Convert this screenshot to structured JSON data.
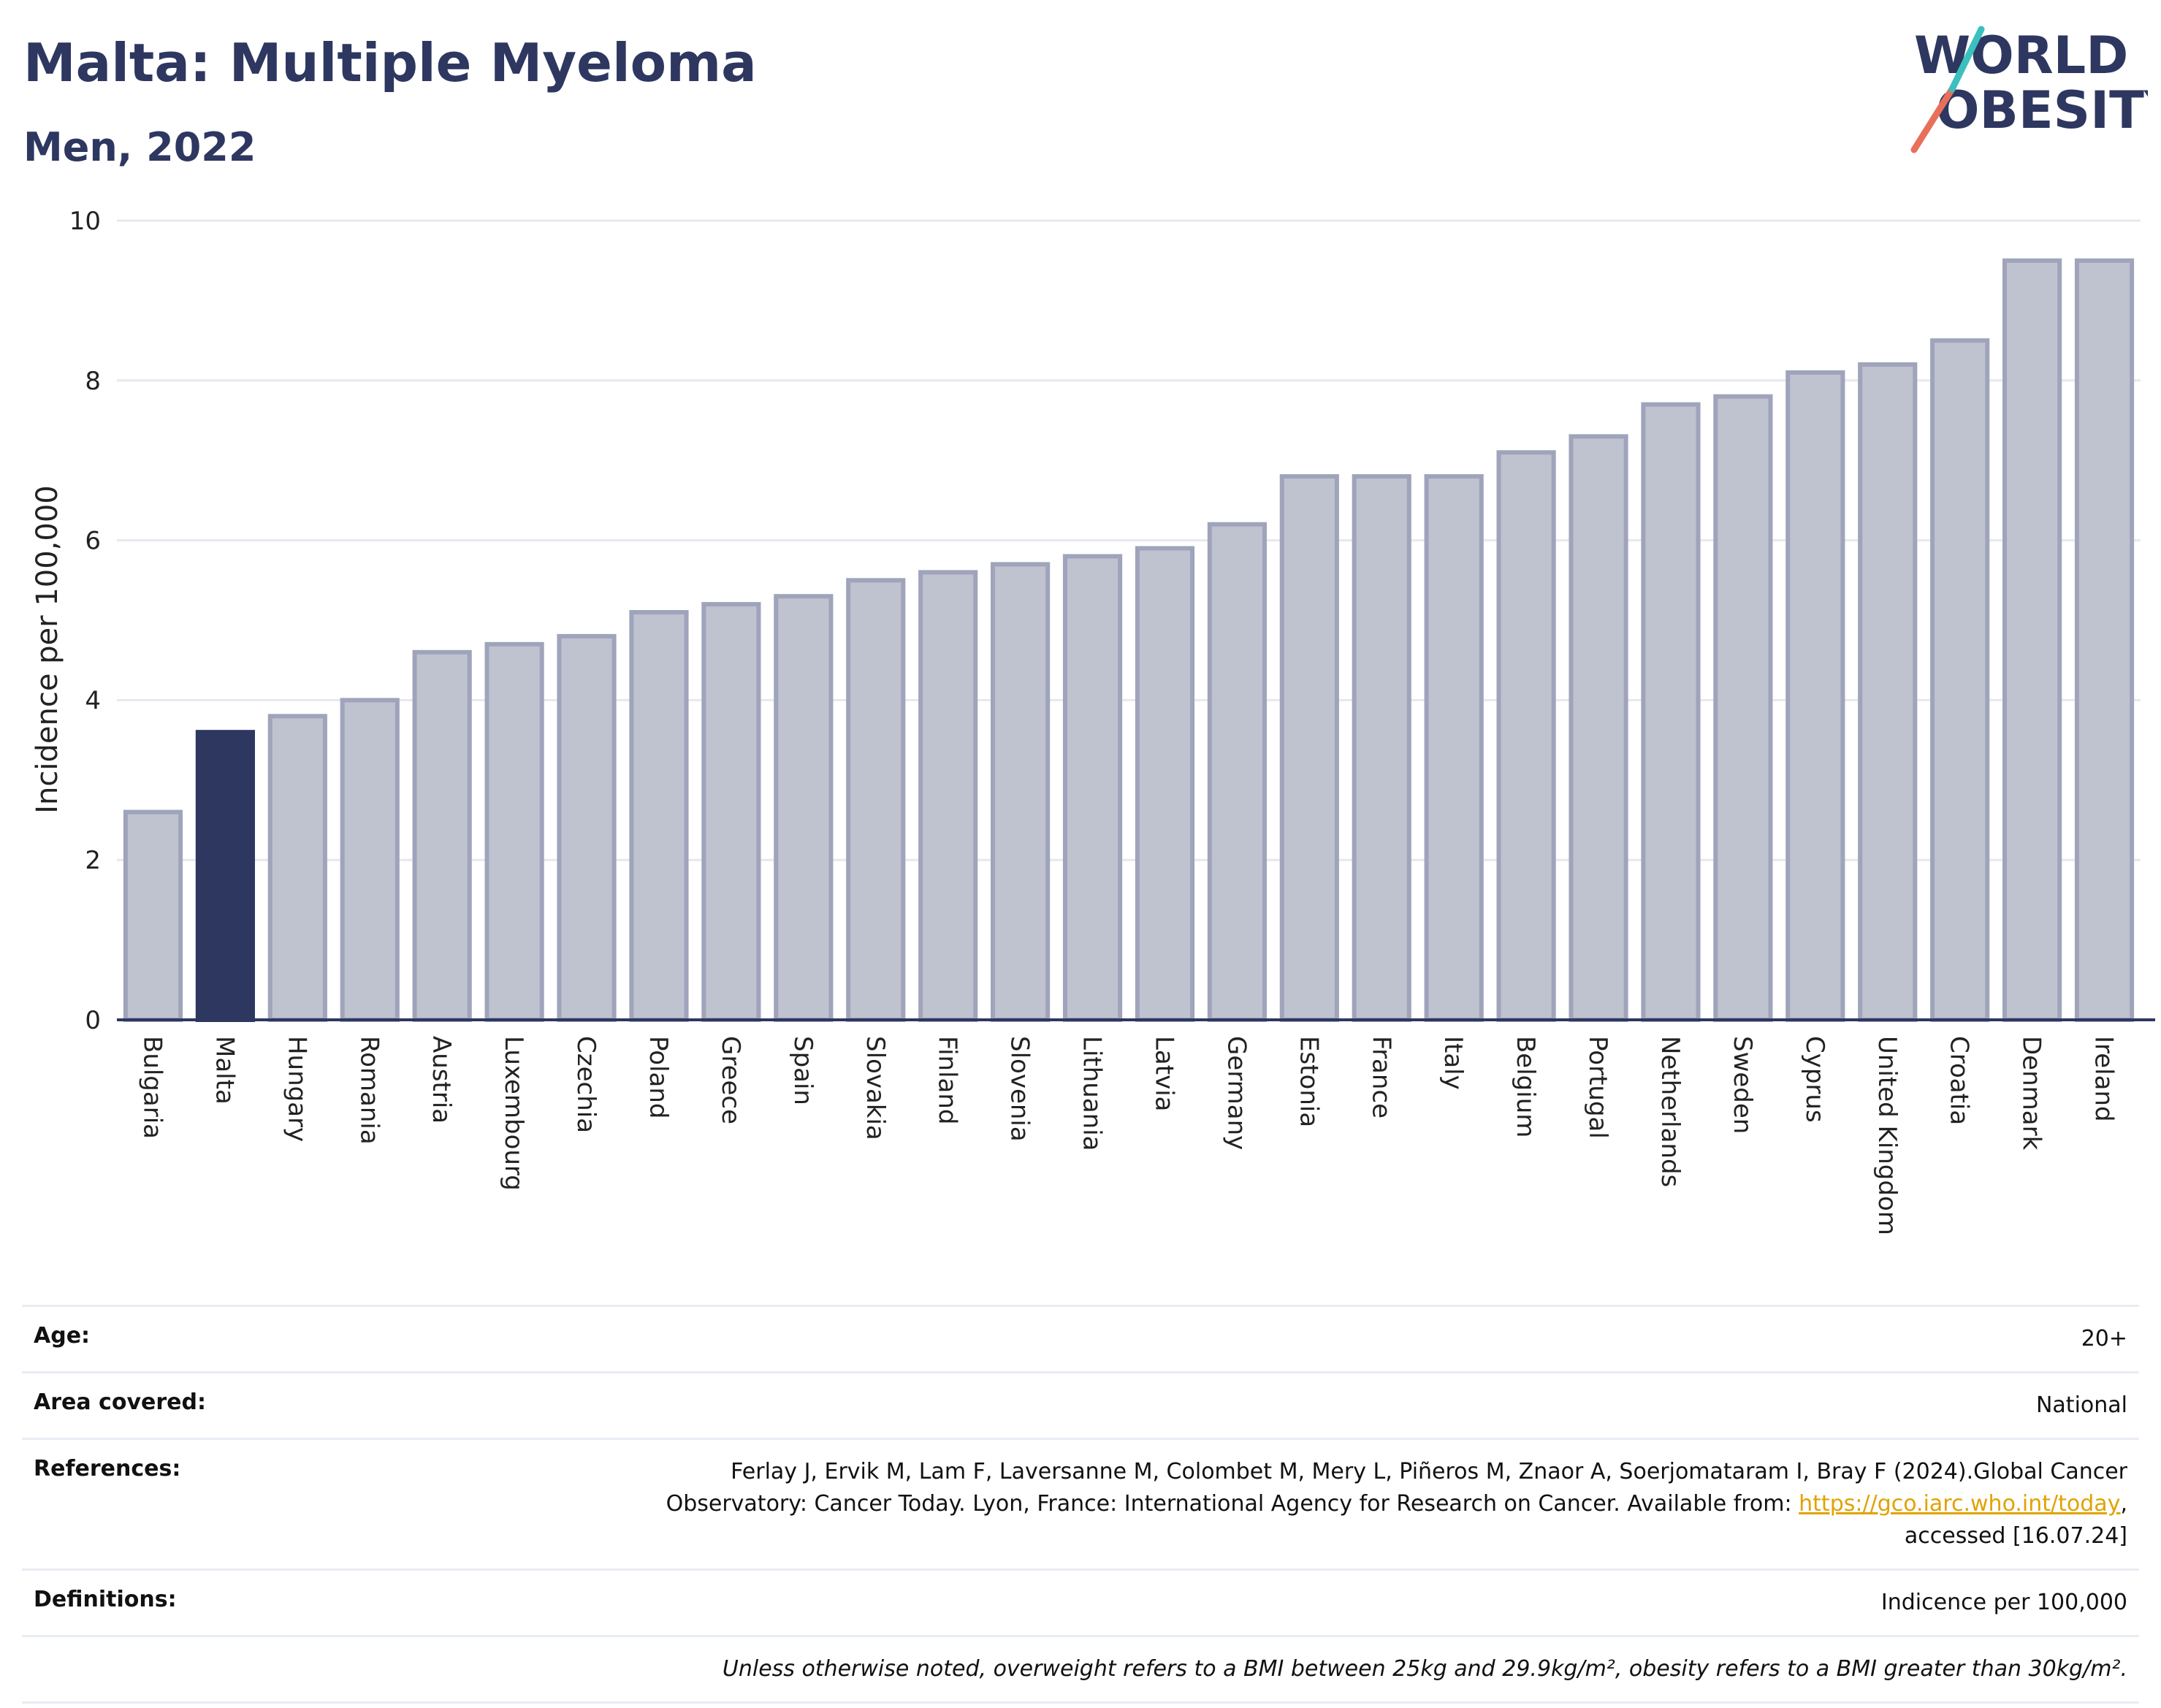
{
  "header": {
    "title": "Malta: Multiple Myeloma",
    "subtitle": "Men, 2022"
  },
  "logo": {
    "line1": "WORLD",
    "line2": "OBESITY"
  },
  "chart_data": {
    "type": "bar",
    "ylabel": "Incidence per 100,000",
    "xlabel": "",
    "ylim": [
      0,
      10
    ],
    "yticks": [
      0,
      2,
      4,
      6,
      8,
      10
    ],
    "grid": true,
    "highlight": "Malta",
    "colors": {
      "bar": "#bfc2cf",
      "bar_border": "#9fa4bb",
      "highlight": "#2d3760",
      "axis": "#2d3760",
      "grid": "#e6e8ee"
    },
    "categories": [
      "Bulgaria",
      "Malta",
      "Hungary",
      "Romania",
      "Austria",
      "Luxembourg",
      "Czechia",
      "Poland",
      "Greece",
      "Spain",
      "Slovakia",
      "Finland",
      "Slovenia",
      "Lithuania",
      "Latvia",
      "Germany",
      "Estonia",
      "France",
      "Italy",
      "Belgium",
      "Portugal",
      "Netherlands",
      "Sweden",
      "Cyprus",
      "United Kingdom",
      "Croatia",
      "Denmark",
      "Ireland"
    ],
    "values": [
      2.6,
      3.6,
      3.8,
      4.0,
      4.6,
      4.7,
      4.8,
      5.1,
      5.2,
      5.3,
      5.5,
      5.6,
      5.7,
      5.8,
      5.9,
      6.2,
      6.8,
      6.8,
      6.8,
      7.1,
      7.3,
      7.7,
      7.8,
      8.1,
      8.2,
      8.5,
      9.5,
      9.5
    ]
  },
  "info": {
    "age_label": "Age:",
    "age_value": "20+",
    "area_label": "Area covered:",
    "area_value": "National",
    "references_label": "References:",
    "references_line1": "Ferlay J, Ervik M, Lam F, Laversanne M, Colombet M, Mery L, Piñeros M, Znaor A, Soerjomataram I, Bray F (2024).Global Cancer",
    "references_line2": "Observatory: Cancer Today. Lyon, France: International Agency for Research on Cancer. Available from:",
    "references_link": "https://gco.iarc.who.int/today",
    "references_line3": "accessed [16.07.24]",
    "definitions_label": "Definitions:",
    "definitions_value": "Indicence per 100,000",
    "note": "Unless otherwise noted, overweight refers to a BMI between 25kg and 29.9kg/m², obesity refers to a BMI greater than 30kg/m²."
  }
}
